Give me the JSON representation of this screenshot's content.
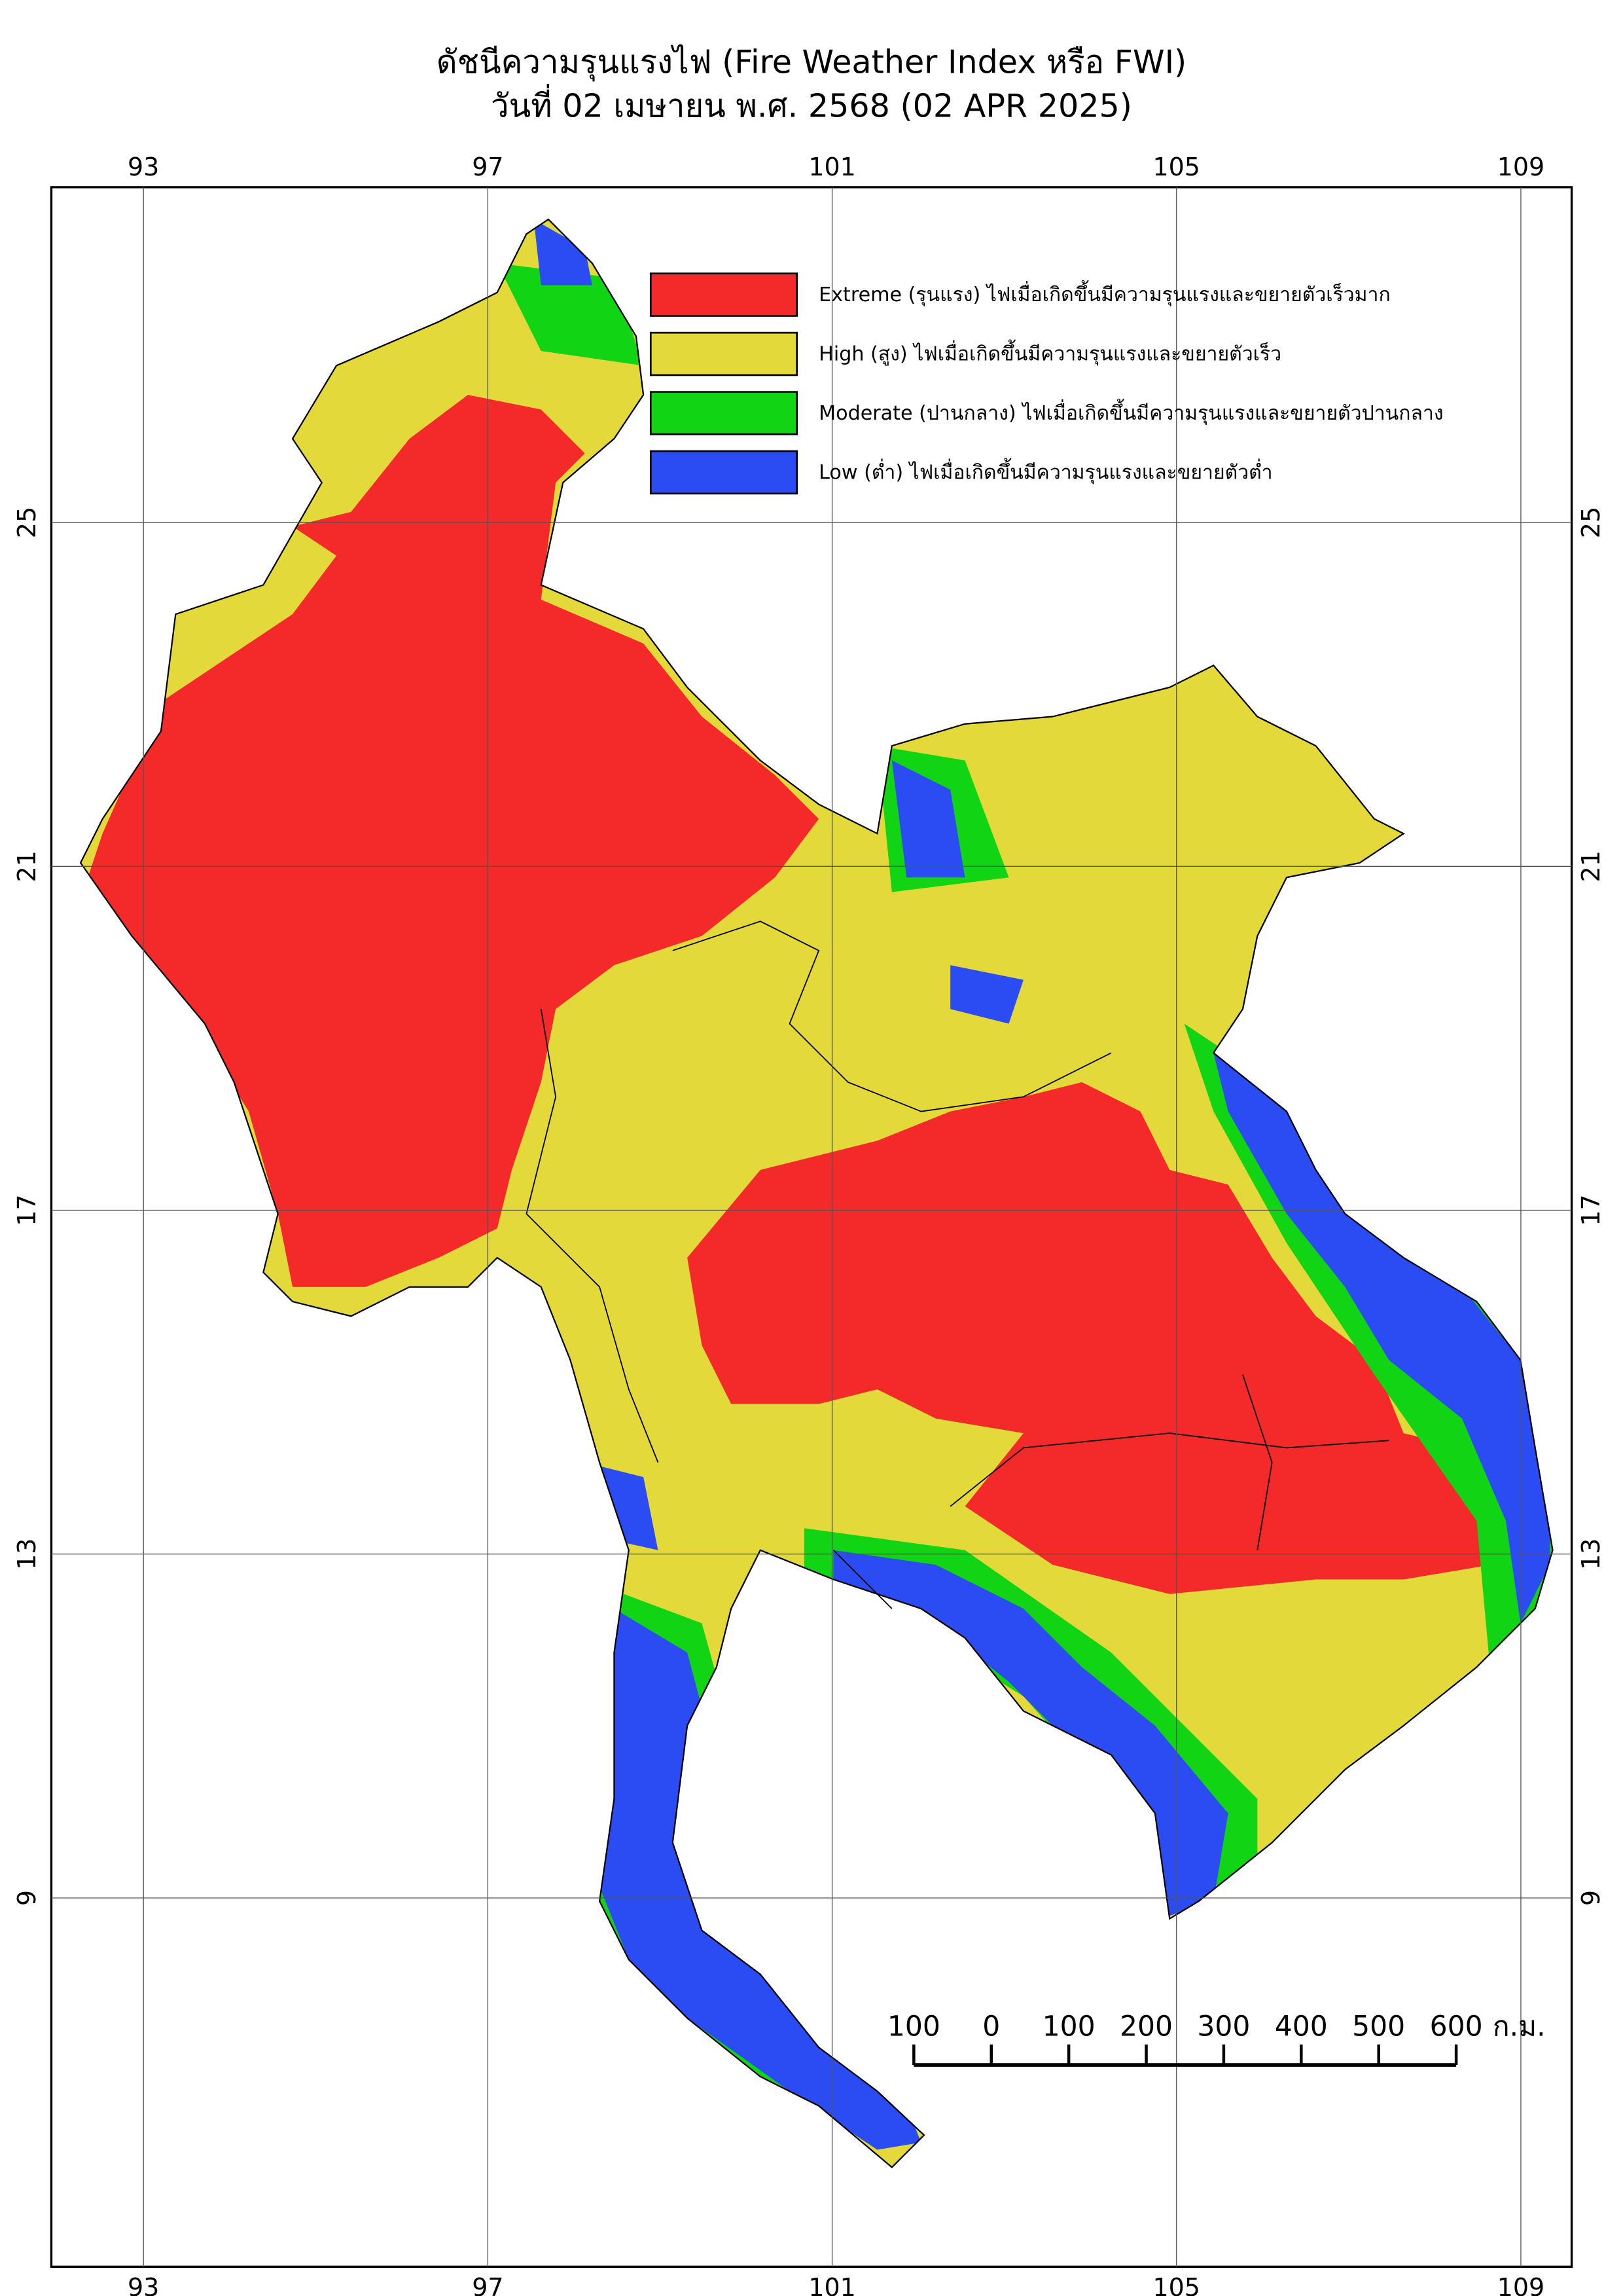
{
  "title": "ดัชนีความรุนแรงไฟ (Fire Weather Index หรือ FWI)",
  "subtitle": "วันที่ 02 เมษายน พ.ศ. 2568 (02 APR 2025)",
  "map": {
    "lon_range": [
      91.93,
      109.59
    ],
    "lat_range": [
      4.71,
      28.9
    ],
    "lon_ticks": [
      93,
      97,
      101,
      105,
      109
    ],
    "lat_ticks": [
      25,
      21,
      17,
      13,
      9
    ]
  },
  "legend": [
    {
      "label": "Extreme (รุนแรง) ไฟเมื่อเกิดขึ้นมีความรุนแรงและขยายตัวเร็วมาก",
      "color": "#f42a2a"
    },
    {
      "label": "High (สูง) ไฟเมื่อเกิดขึ้นมีความรุนแรงและขยายตัวเร็ว",
      "color": "#e3d93a"
    },
    {
      "label": "Moderate (ปานกลาง) ไฟเมื่อเกิดขึ้นมีความรุนแรงและขยายตัวปานกลาง",
      "color": "#10d414"
    },
    {
      "label": "Low (ต่ำ) ไฟเมื่อเกิดขึ้นมีความรุนแรงและขยายตัวต่ำ",
      "color": "#2a4cf2"
    }
  ],
  "scale_bar": {
    "ticks": [
      {
        "value": -100,
        "label": "100"
      },
      0,
      100,
      200,
      300,
      400,
      500,
      600
    ],
    "unit": "ก.ม."
  }
}
